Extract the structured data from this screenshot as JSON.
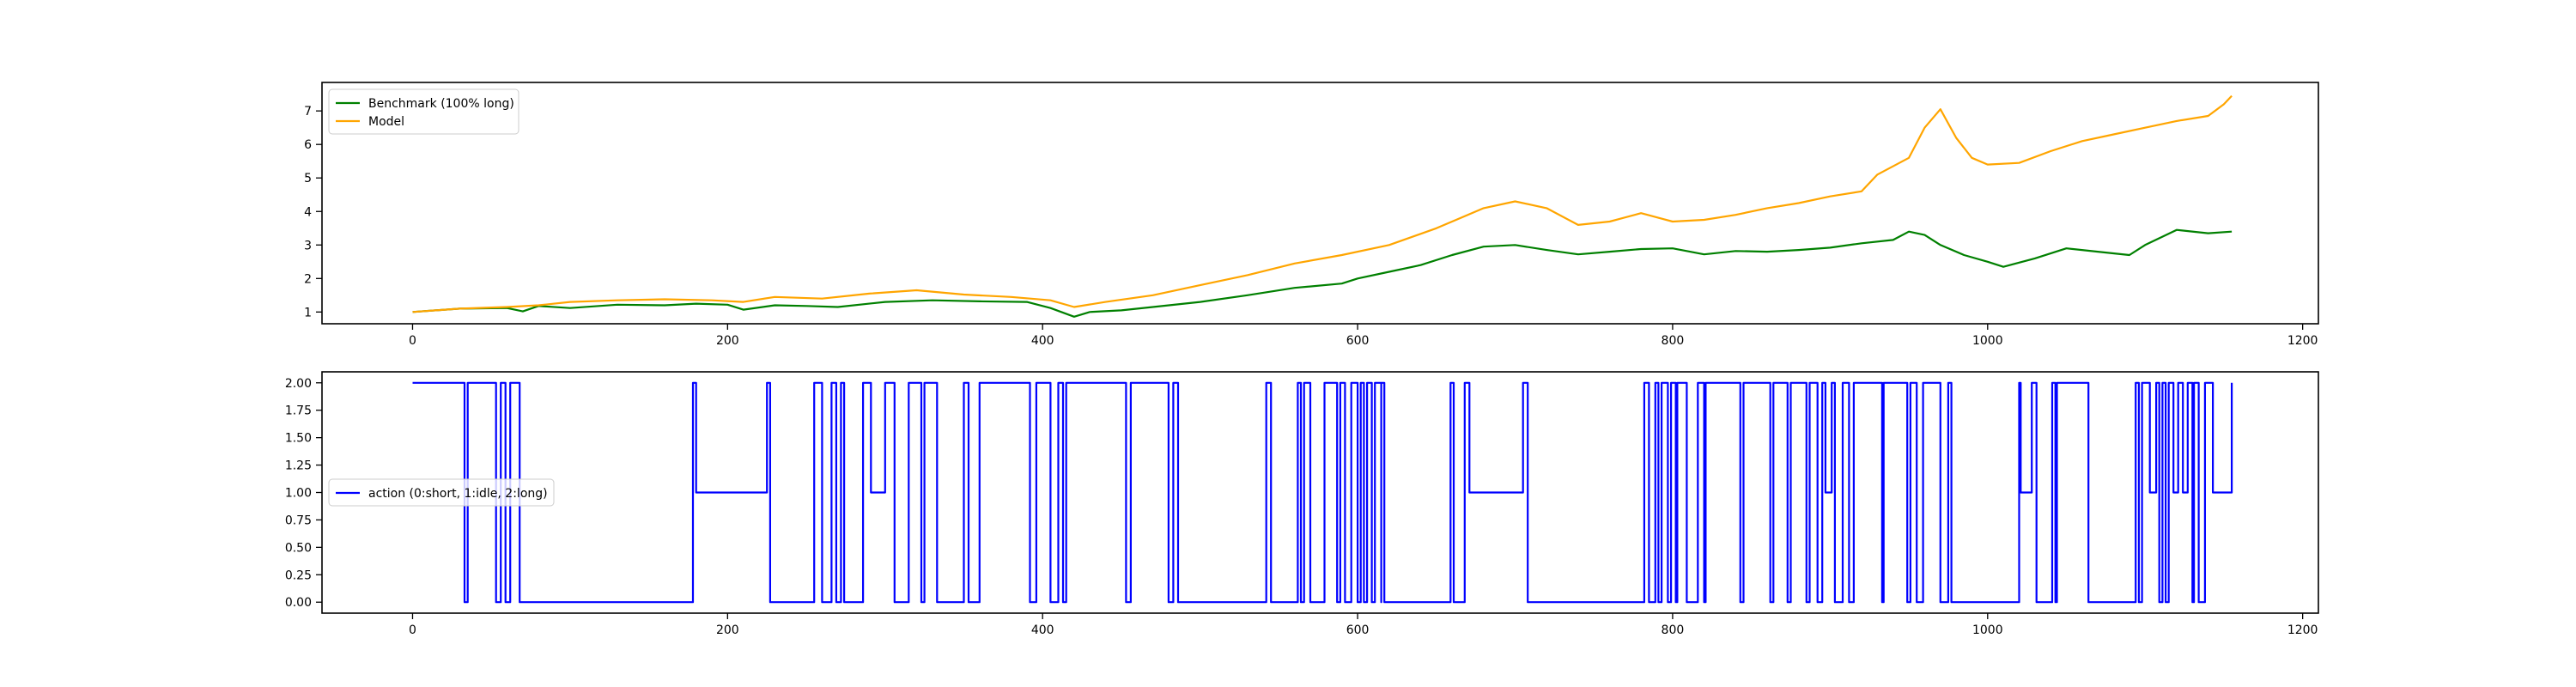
{
  "chart_data": [
    {
      "type": "line",
      "xlim": [
        -57.5,
        1210
      ],
      "ylim": [
        0.65,
        7.85
      ],
      "xticks": [
        0,
        200,
        400,
        600,
        800,
        1000,
        1200
      ],
      "yticks": [
        1,
        2,
        3,
        4,
        5,
        6,
        7
      ],
      "grid": false,
      "legend": "top-left",
      "series": [
        {
          "name": "Benchmark (100% long)",
          "color": "#008000",
          "x": [
            0,
            30,
            60,
            70,
            80,
            100,
            130,
            160,
            180,
            200,
            210,
            230,
            250,
            270,
            300,
            330,
            360,
            390,
            405,
            420,
            430,
            450,
            470,
            500,
            530,
            560,
            590,
            600,
            620,
            640,
            660,
            680,
            700,
            720,
            740,
            760,
            780,
            800,
            820,
            840,
            860,
            880,
            900,
            920,
            940,
            950,
            960,
            970,
            985,
            1000,
            1010,
            1030,
            1050,
            1070,
            1090,
            1100,
            1120,
            1140,
            1155
          ],
          "values": [
            1.0,
            1.1,
            1.12,
            1.02,
            1.18,
            1.12,
            1.22,
            1.2,
            1.25,
            1.22,
            1.07,
            1.2,
            1.18,
            1.15,
            1.3,
            1.35,
            1.32,
            1.3,
            1.12,
            0.86,
            1.0,
            1.05,
            1.15,
            1.3,
            1.5,
            1.72,
            1.85,
            2.0,
            2.2,
            2.4,
            2.7,
            2.95,
            3.0,
            2.85,
            2.72,
            2.8,
            2.88,
            2.9,
            2.72,
            2.82,
            2.8,
            2.85,
            2.92,
            3.05,
            3.15,
            3.4,
            3.3,
            3.0,
            2.7,
            2.5,
            2.35,
            2.6,
            2.9,
            2.8,
            2.7,
            3.0,
            3.45,
            3.35,
            3.4
          ]
        },
        {
          "name": "Model",
          "color": "#ffa500",
          "x": [
            0,
            30,
            60,
            80,
            100,
            130,
            160,
            190,
            210,
            230,
            260,
            290,
            320,
            350,
            380,
            405,
            420,
            440,
            470,
            500,
            530,
            560,
            590,
            620,
            650,
            680,
            700,
            720,
            740,
            760,
            780,
            800,
            820,
            840,
            860,
            880,
            900,
            920,
            930,
            950,
            960,
            970,
            980,
            990,
            1000,
            1020,
            1040,
            1060,
            1080,
            1100,
            1120,
            1140,
            1150,
            1155
          ],
          "values": [
            1.0,
            1.1,
            1.15,
            1.2,
            1.3,
            1.35,
            1.38,
            1.35,
            1.3,
            1.45,
            1.4,
            1.55,
            1.65,
            1.52,
            1.45,
            1.35,
            1.15,
            1.3,
            1.5,
            1.8,
            2.1,
            2.45,
            2.7,
            3.0,
            3.5,
            4.1,
            4.3,
            4.1,
            3.6,
            3.7,
            3.95,
            3.7,
            3.75,
            3.9,
            4.1,
            4.25,
            4.45,
            4.6,
            5.1,
            5.6,
            6.5,
            7.05,
            6.2,
            5.6,
            5.4,
            5.45,
            5.8,
            6.1,
            6.3,
            6.5,
            6.7,
            6.85,
            7.2,
            7.45
          ]
        }
      ]
    },
    {
      "type": "line",
      "xlim": [
        -57.5,
        1210
      ],
      "ylim": [
        -0.1,
        2.1
      ],
      "xticks": [
        0,
        200,
        400,
        600,
        800,
        1000,
        1200
      ],
      "yticks": [
        "0.00",
        "0.25",
        "0.50",
        "0.75",
        "1.00",
        "1.25",
        "1.50",
        "1.75",
        "2.00"
      ],
      "grid": false,
      "legend": "center-left",
      "series": [
        {
          "name": "action (0:short, 1:idle, 2:long)",
          "color": "#0000ff",
          "step_x": [
            0,
            33,
            35,
            53,
            56,
            59,
            62,
            68,
            178,
            180,
            225,
            227,
            255,
            260,
            266,
            269,
            272,
            274,
            286,
            291,
            300,
            306,
            315,
            323,
            325,
            333,
            350,
            353,
            360,
            392,
            396,
            405,
            410,
            413,
            415,
            453,
            456,
            480,
            483,
            486,
            542,
            545,
            562,
            564,
            566,
            570,
            579,
            587,
            589,
            592,
            596,
            600,
            602,
            604,
            606,
            609,
            611,
            615,
            615,
            617,
            659,
            661,
            668,
            671,
            705,
            708,
            782,
            785,
            789,
            791,
            793,
            797,
            799,
            802,
            803,
            809,
            816,
            820,
            821,
            843,
            845,
            862,
            864,
            873,
            875,
            885,
            887,
            892,
            895,
            897,
            901,
            903,
            908,
            912,
            915,
            933,
            934,
            949,
            951,
            955,
            959,
            970,
            975,
            977,
            1020,
            1021,
            1028,
            1031,
            1041,
            1043,
            1044,
            1064,
            1094,
            1096,
            1098,
            1103,
            1107,
            1109,
            1111,
            1113,
            1115,
            1118,
            1121,
            1124,
            1127,
            1130,
            1131,
            1134,
            1138,
            1143,
            1155
          ],
          "step_y": [
            2,
            0,
            2,
            0,
            2,
            0,
            2,
            0,
            2,
            1,
            2,
            0,
            2,
            0,
            2,
            0,
            2,
            0,
            2,
            1,
            2,
            0,
            2,
            0,
            2,
            0,
            2,
            0,
            2,
            0,
            2,
            0,
            2,
            0,
            2,
            0,
            2,
            0,
            2,
            0,
            2,
            0,
            2,
            0,
            2,
            0,
            2,
            0,
            2,
            0,
            2,
            0,
            2,
            0,
            2,
            0,
            2,
            0,
            2,
            0,
            2,
            0,
            2,
            1,
            2,
            0,
            2,
            0,
            2,
            0,
            2,
            0,
            2,
            0,
            2,
            0,
            2,
            0,
            2,
            0,
            2,
            0,
            2,
            0,
            2,
            0,
            2,
            0,
            2,
            1,
            2,
            0,
            2,
            0,
            2,
            0,
            2,
            0,
            2,
            0,
            2,
            0,
            2,
            0,
            2,
            1,
            2,
            0,
            2,
            0,
            2,
            0,
            2,
            0,
            2,
            1,
            2,
            0,
            2,
            0,
            2,
            1,
            2,
            1,
            2,
            0,
            2,
            0,
            2,
            1,
            2,
            0,
            2
          ]
        }
      ]
    }
  ]
}
